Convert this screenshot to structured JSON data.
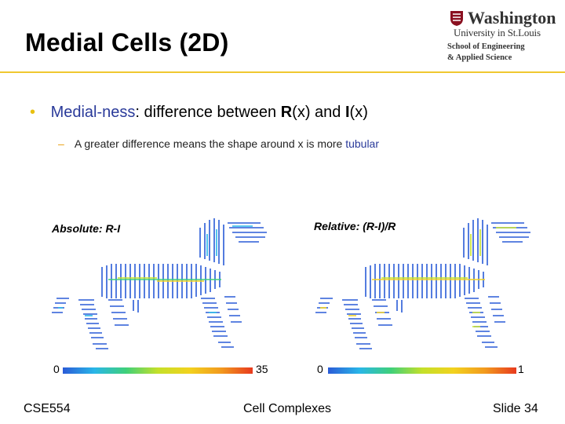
{
  "slide": {
    "title": "Medial Cells (2D)",
    "logo": {
      "line1": "Washington",
      "line2": "University in St.Louis",
      "line3": "School of Engineering",
      "line4": "& Applied Science"
    },
    "bullet": {
      "term": "Medial-ness",
      "colon": ": difference between ",
      "R": "R",
      "rx": "(x) and ",
      "I": "I",
      "ix": "(x)"
    },
    "sub_bullet": {
      "text": "A greater difference means the shape around x is more ",
      "highlight": "tubular"
    },
    "panels": [
      {
        "label": "Absolute: R-I",
        "scale_min": "0",
        "scale_max": "35"
      },
      {
        "label": "Relative: (R-I)/R",
        "scale_min": "0",
        "scale_max": "1"
      }
    ],
    "footer": {
      "left": "CSE554",
      "center": "Cell Complexes",
      "right": "Slide 34"
    }
  },
  "colors": {
    "accent_rule": "#f0c830",
    "bullet_term": "#2a3a9a",
    "bullet_dot": "#e8c010"
  }
}
